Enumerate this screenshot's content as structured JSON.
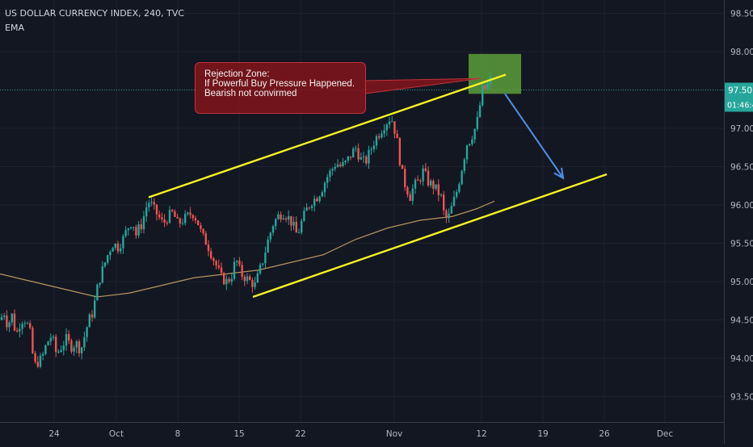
{
  "header": {
    "title": "US DOLLAR CURRENCY INDEX, 240, TVC",
    "indicator": "EMA"
  },
  "annotation": {
    "lines": [
      "Rejection Zone:",
      "If Powerful Buy Pressure Happened.",
      "Bearish not convirmed"
    ]
  },
  "price_axis": {
    "last_price": "97.50",
    "countdown": "01:46:4"
  },
  "colors": {
    "background": "#131722",
    "up": "#26a69a",
    "down": "#ef5350",
    "ema": "#c9a368",
    "channel": "#f5f522",
    "arrow": "#4f8fe6",
    "zone": "#5c9e3a",
    "callout": "#80141a"
  },
  "chart_data": {
    "type": "candlestick",
    "title": "US DOLLAR CURRENCY INDEX, 240, TVC",
    "ylim": [
      93.2,
      98.7
    ],
    "y_ticks": [
      93.5,
      94.0,
      94.5,
      95.0,
      95.5,
      96.0,
      96.5,
      97.0,
      97.5,
      98.0,
      98.5
    ],
    "x_ticks": [
      "24",
      "Oct",
      "8",
      "15",
      "22",
      "Nov",
      "12",
      "19",
      "26",
      "Dec"
    ],
    "grid": true,
    "close_path": [
      [
        0,
        94.5
      ],
      [
        5,
        94.6
      ],
      [
        10,
        94.4
      ],
      [
        14,
        94.6
      ],
      [
        20,
        94.3
      ],
      [
        26,
        94.5
      ],
      [
        32,
        94.5
      ],
      [
        38,
        94.3
      ],
      [
        42,
        93.9
      ],
      [
        47,
        93.95
      ],
      [
        52,
        94.0
      ],
      [
        58,
        94.2
      ],
      [
        64,
        94.3
      ],
      [
        70,
        94.05
      ],
      [
        76,
        94.15
      ],
      [
        82,
        94.25
      ],
      [
        88,
        94.15
      ],
      [
        94,
        94.2
      ],
      [
        100,
        94.1
      ],
      [
        106,
        94.35
      ],
      [
        110,
        94.5
      ],
      [
        115,
        94.6
      ],
      [
        120,
        94.9
      ],
      [
        125,
        95.1
      ],
      [
        130,
        95.25
      ],
      [
        135,
        95.4
      ],
      [
        140,
        95.5
      ],
      [
        146,
        95.45
      ],
      [
        152,
        95.55
      ],
      [
        158,
        95.7
      ],
      [
        164,
        95.8
      ],
      [
        168,
        95.6
      ],
      [
        172,
        95.7
      ],
      [
        176,
        95.75
      ],
      [
        180,
        95.95
      ],
      [
        185,
        96.05
      ],
      [
        190,
        95.95
      ],
      [
        196,
        95.85
      ],
      [
        202,
        95.75
      ],
      [
        208,
        95.85
      ],
      [
        214,
        95.9
      ],
      [
        220,
        95.75
      ],
      [
        226,
        95.8
      ],
      [
        232,
        95.85
      ],
      [
        238,
        95.9
      ],
      [
        244,
        95.8
      ],
      [
        250,
        95.6
      ],
      [
        256,
        95.5
      ],
      [
        262,
        95.35
      ],
      [
        268,
        95.2
      ],
      [
        274,
        95.05
      ],
      [
        280,
        95.0
      ],
      [
        286,
        95.05
      ],
      [
        292,
        95.3
      ],
      [
        298,
        95.1
      ],
      [
        304,
        95.05
      ],
      [
        310,
        95.0
      ],
      [
        316,
        94.95
      ],
      [
        320,
        95.1
      ],
      [
        326,
        95.3
      ],
      [
        332,
        95.55
      ],
      [
        338,
        95.75
      ],
      [
        344,
        95.85
      ],
      [
        350,
        95.9
      ],
      [
        356,
        95.85
      ],
      [
        362,
        95.75
      ],
      [
        368,
        95.6
      ],
      [
        374,
        95.8
      ],
      [
        380,
        95.95
      ],
      [
        386,
        96.05
      ],
      [
        392,
        96.1
      ],
      [
        398,
        96.2
      ],
      [
        404,
        96.35
      ],
      [
        410,
        96.45
      ],
      [
        416,
        96.55
      ],
      [
        422,
        96.5
      ],
      [
        428,
        96.55
      ],
      [
        434,
        96.65
      ],
      [
        440,
        96.75
      ],
      [
        446,
        96.6
      ],
      [
        452,
        96.55
      ],
      [
        458,
        96.7
      ],
      [
        464,
        96.85
      ],
      [
        470,
        96.95
      ],
      [
        476,
        97.05
      ],
      [
        480,
        97.1
      ],
      [
        484,
        97.15
      ],
      [
        488,
        97.0
      ],
      [
        492,
        96.8
      ],
      [
        496,
        96.5
      ],
      [
        500,
        96.3
      ],
      [
        504,
        96.2
      ],
      [
        508,
        96.1
      ],
      [
        512,
        96.25
      ],
      [
        518,
        96.3
      ],
      [
        524,
        96.45
      ],
      [
        530,
        96.3
      ],
      [
        536,
        96.25
      ],
      [
        540,
        96.2
      ],
      [
        546,
        96.1
      ],
      [
        550,
        95.85
      ],
      [
        554,
        95.8
      ],
      [
        560,
        96.0
      ],
      [
        566,
        96.2
      ],
      [
        570,
        96.4
      ],
      [
        574,
        96.6
      ],
      [
        578,
        96.8
      ],
      [
        582,
        96.85
      ],
      [
        586,
        96.95
      ],
      [
        590,
        97.05
      ],
      [
        594,
        97.3
      ],
      [
        598,
        97.55
      ],
      [
        602,
        97.5
      ],
      [
        606,
        97.65
      ],
      [
        610,
        97.55
      ]
    ],
    "ema_path": [
      [
        0,
        95.1
      ],
      [
        40,
        95.0
      ],
      [
        80,
        94.9
      ],
      [
        120,
        94.8
      ],
      [
        160,
        94.85
      ],
      [
        200,
        94.95
      ],
      [
        240,
        95.05
      ],
      [
        280,
        95.1
      ],
      [
        320,
        95.15
      ],
      [
        360,
        95.25
      ],
      [
        400,
        95.35
      ],
      [
        440,
        95.55
      ],
      [
        480,
        95.7
      ],
      [
        520,
        95.8
      ],
      [
        560,
        95.85
      ],
      [
        590,
        95.95
      ],
      [
        612,
        96.05
      ]
    ],
    "channel_upper": {
      "from": [
        184,
        96.1
      ],
      "to": [
        626,
        97.7
      ]
    },
    "channel_lower": {
      "from": [
        313,
        94.8
      ],
      "to": [
        751,
        96.4
      ]
    },
    "rejection_zone": {
      "x": [
        580,
        645
      ],
      "y": [
        97.45,
        97.97
      ]
    },
    "forecast_arrow": {
      "from": [
        625,
        97.45
      ],
      "to": [
        697,
        96.35
      ]
    },
    "callout_pointer": [
      595,
      97.65
    ],
    "last_price": 97.5
  }
}
